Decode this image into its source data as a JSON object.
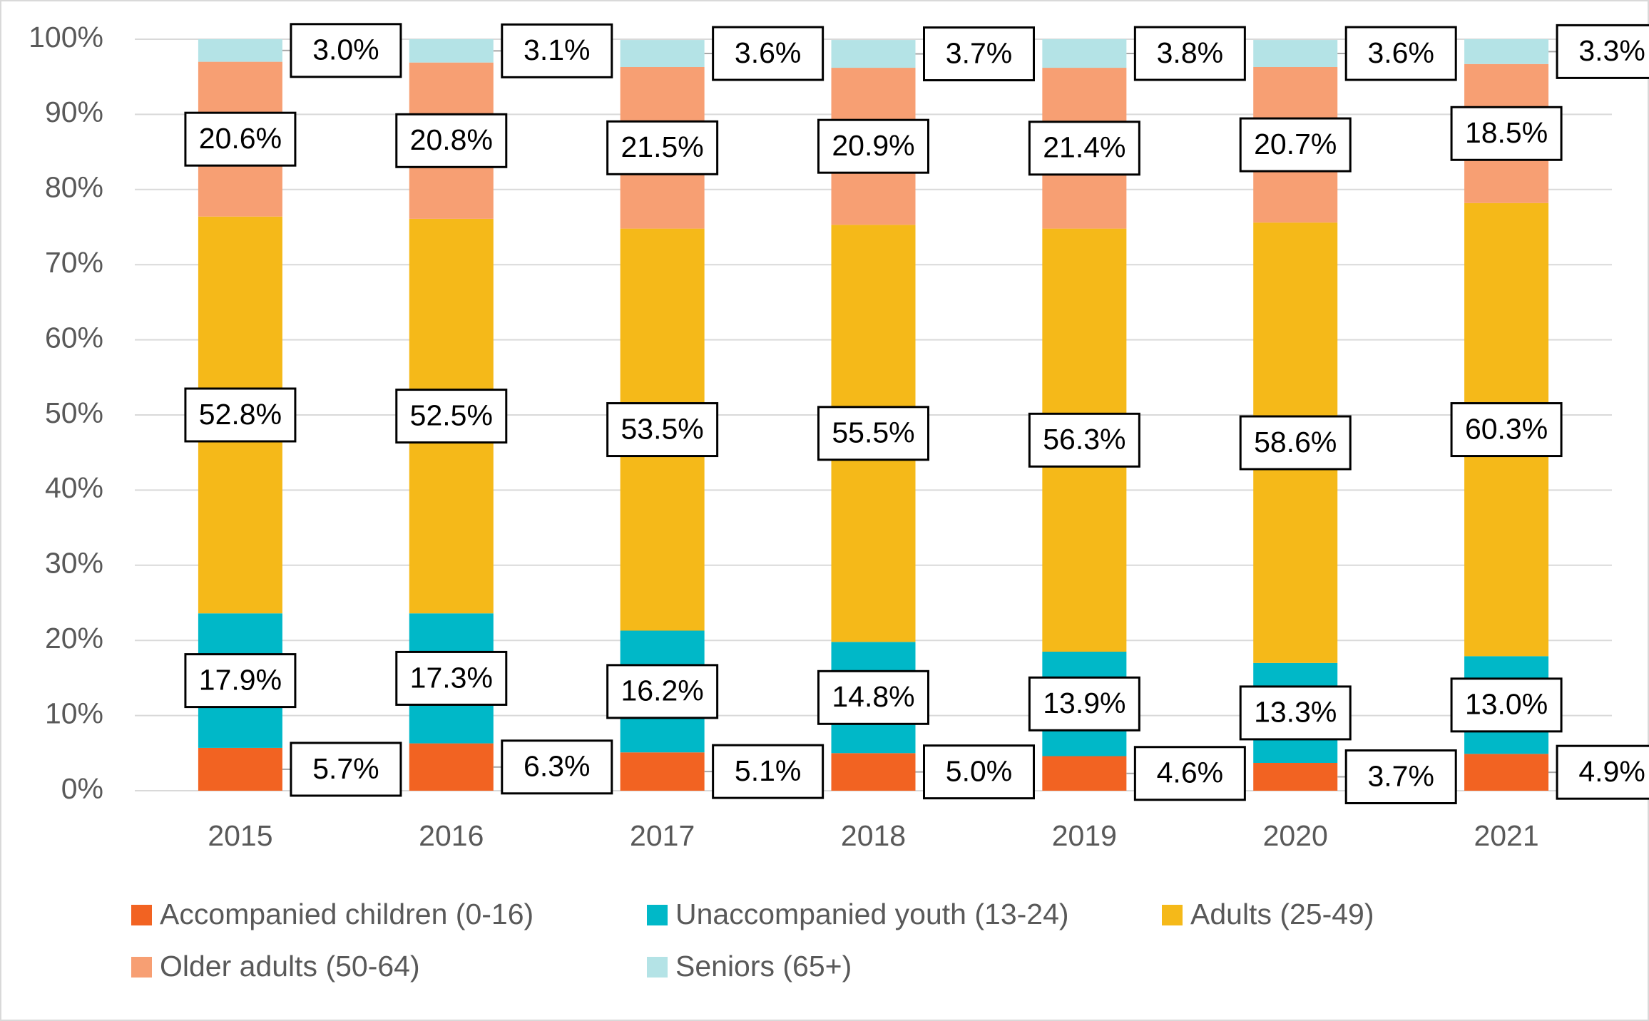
{
  "chart_data": {
    "type": "stacked_bar",
    "categories": [
      "2015",
      "2016",
      "2017",
      "2018",
      "2019",
      "2020",
      "2021"
    ],
    "series": [
      {
        "name": "Accompanied children (0-16)",
        "color": "#f26322",
        "values": [
          5.7,
          6.3,
          5.1,
          5.0,
          4.6,
          3.7,
          4.9
        ],
        "value_labels": [
          "5.7%",
          "6.3%",
          "5.1%",
          "5.0%",
          "4.6%",
          "3.7%",
          "4.9%"
        ]
      },
      {
        "name": "Unaccompanied youth (13-24)",
        "color": "#00b8c8",
        "values": [
          17.9,
          17.3,
          16.2,
          14.8,
          13.9,
          13.3,
          13.0
        ],
        "value_labels": [
          "17.9%",
          "17.3%",
          "16.2%",
          "14.8%",
          "13.9%",
          "13.3%",
          "13.0%"
        ]
      },
      {
        "name": "Adults (25-49)",
        "color": "#f5b919",
        "values": [
          52.8,
          52.5,
          53.5,
          55.5,
          56.3,
          58.6,
          60.3
        ],
        "value_labels": [
          "52.8%",
          "52.5%",
          "53.5%",
          "55.5%",
          "56.3%",
          "58.6%",
          "60.3%"
        ]
      },
      {
        "name": "Older adults (50-64)",
        "color": "#f79f73",
        "values": [
          20.6,
          20.8,
          21.5,
          20.9,
          21.4,
          20.7,
          18.5
        ],
        "value_labels": [
          "20.6%",
          "20.8%",
          "21.5%",
          "20.9%",
          "21.4%",
          "20.7%",
          "18.5%"
        ]
      },
      {
        "name": "Seniors (65+)",
        "color": "#b4e3e6",
        "values": [
          3.0,
          3.1,
          3.6,
          3.7,
          3.8,
          3.6,
          3.3
        ],
        "value_labels": [
          "3.0%",
          "3.1%",
          "3.6%",
          "3.7%",
          "3.8%",
          "3.6%",
          "3.3%"
        ]
      }
    ],
    "ylim": [
      0,
      100
    ],
    "yticks": [
      {
        "value": 0,
        "label": "0%"
      },
      {
        "value": 10,
        "label": "10%"
      },
      {
        "value": 20,
        "label": "20%"
      },
      {
        "value": 30,
        "label": "30%"
      },
      {
        "value": 40,
        "label": "40%"
      },
      {
        "value": 50,
        "label": "50%"
      },
      {
        "value": 60,
        "label": "60%"
      },
      {
        "value": 70,
        "label": "70%"
      },
      {
        "value": 80,
        "label": "80%"
      },
      {
        "value": 90,
        "label": "90%"
      },
      {
        "value": 100,
        "label": "100%"
      }
    ],
    "grid": true,
    "legend": "bottom"
  }
}
